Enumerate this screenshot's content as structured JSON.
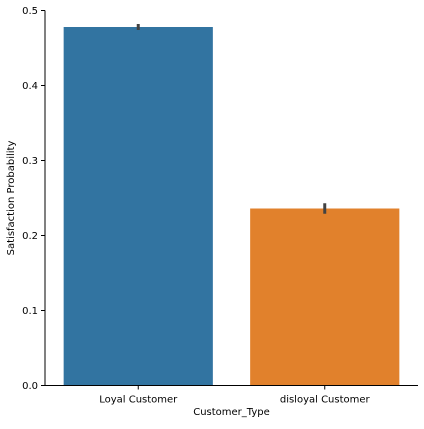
{
  "chart_data": {
    "type": "bar",
    "title": "",
    "xlabel": "Customer_Type",
    "ylabel": "Satisfaction Probability",
    "categories": [
      "Loyal Customer",
      "disloyal Customer"
    ],
    "values": [
      0.478,
      0.236
    ],
    "error_bars": [
      [
        0.474,
        0.482
      ],
      [
        0.229,
        0.243
      ]
    ],
    "colors": [
      "#3274a1",
      "#e1812c"
    ],
    "error_color": "#424242",
    "ylim": [
      0,
      0.5
    ],
    "yticks": [
      "0.0",
      "0.1",
      "0.2",
      "0.3",
      "0.4",
      "0.5"
    ],
    "grid": false,
    "legend": "none"
  }
}
